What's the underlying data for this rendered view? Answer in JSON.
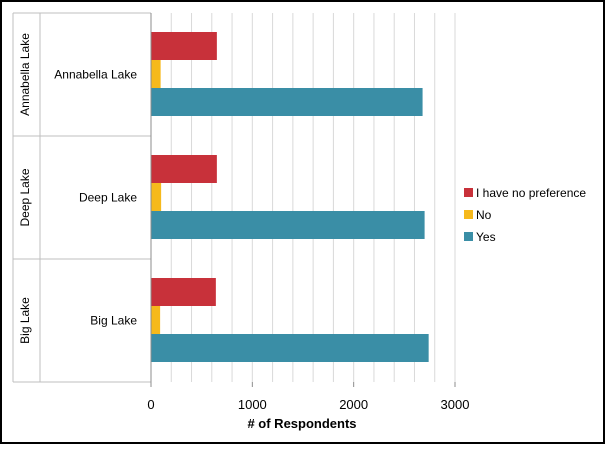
{
  "chart_data": {
    "type": "bar",
    "orientation": "horizontal",
    "title": "",
    "xlabel": "# of Respondents",
    "ylabel": "",
    "xlim": [
      0,
      3000
    ],
    "xticks": [
      0,
      1000,
      2000,
      3000
    ],
    "grid": true,
    "legend_position": "right",
    "categories": [
      "Annabella Lake",
      "Deep Lake",
      "Big Lake"
    ],
    "group_labels": [
      "Annabella Lake",
      "Deep Lake",
      "Big Lake"
    ],
    "series": [
      {
        "name": "I have no preference",
        "color": "#c8313a",
        "values": [
          650,
          650,
          640
        ]
      },
      {
        "name": "No",
        "color": "#f6b91c",
        "values": [
          95,
          100,
          90
        ]
      },
      {
        "name": "Yes",
        "color": "#3a8ea6",
        "values": [
          2680,
          2700,
          2740
        ]
      }
    ]
  }
}
